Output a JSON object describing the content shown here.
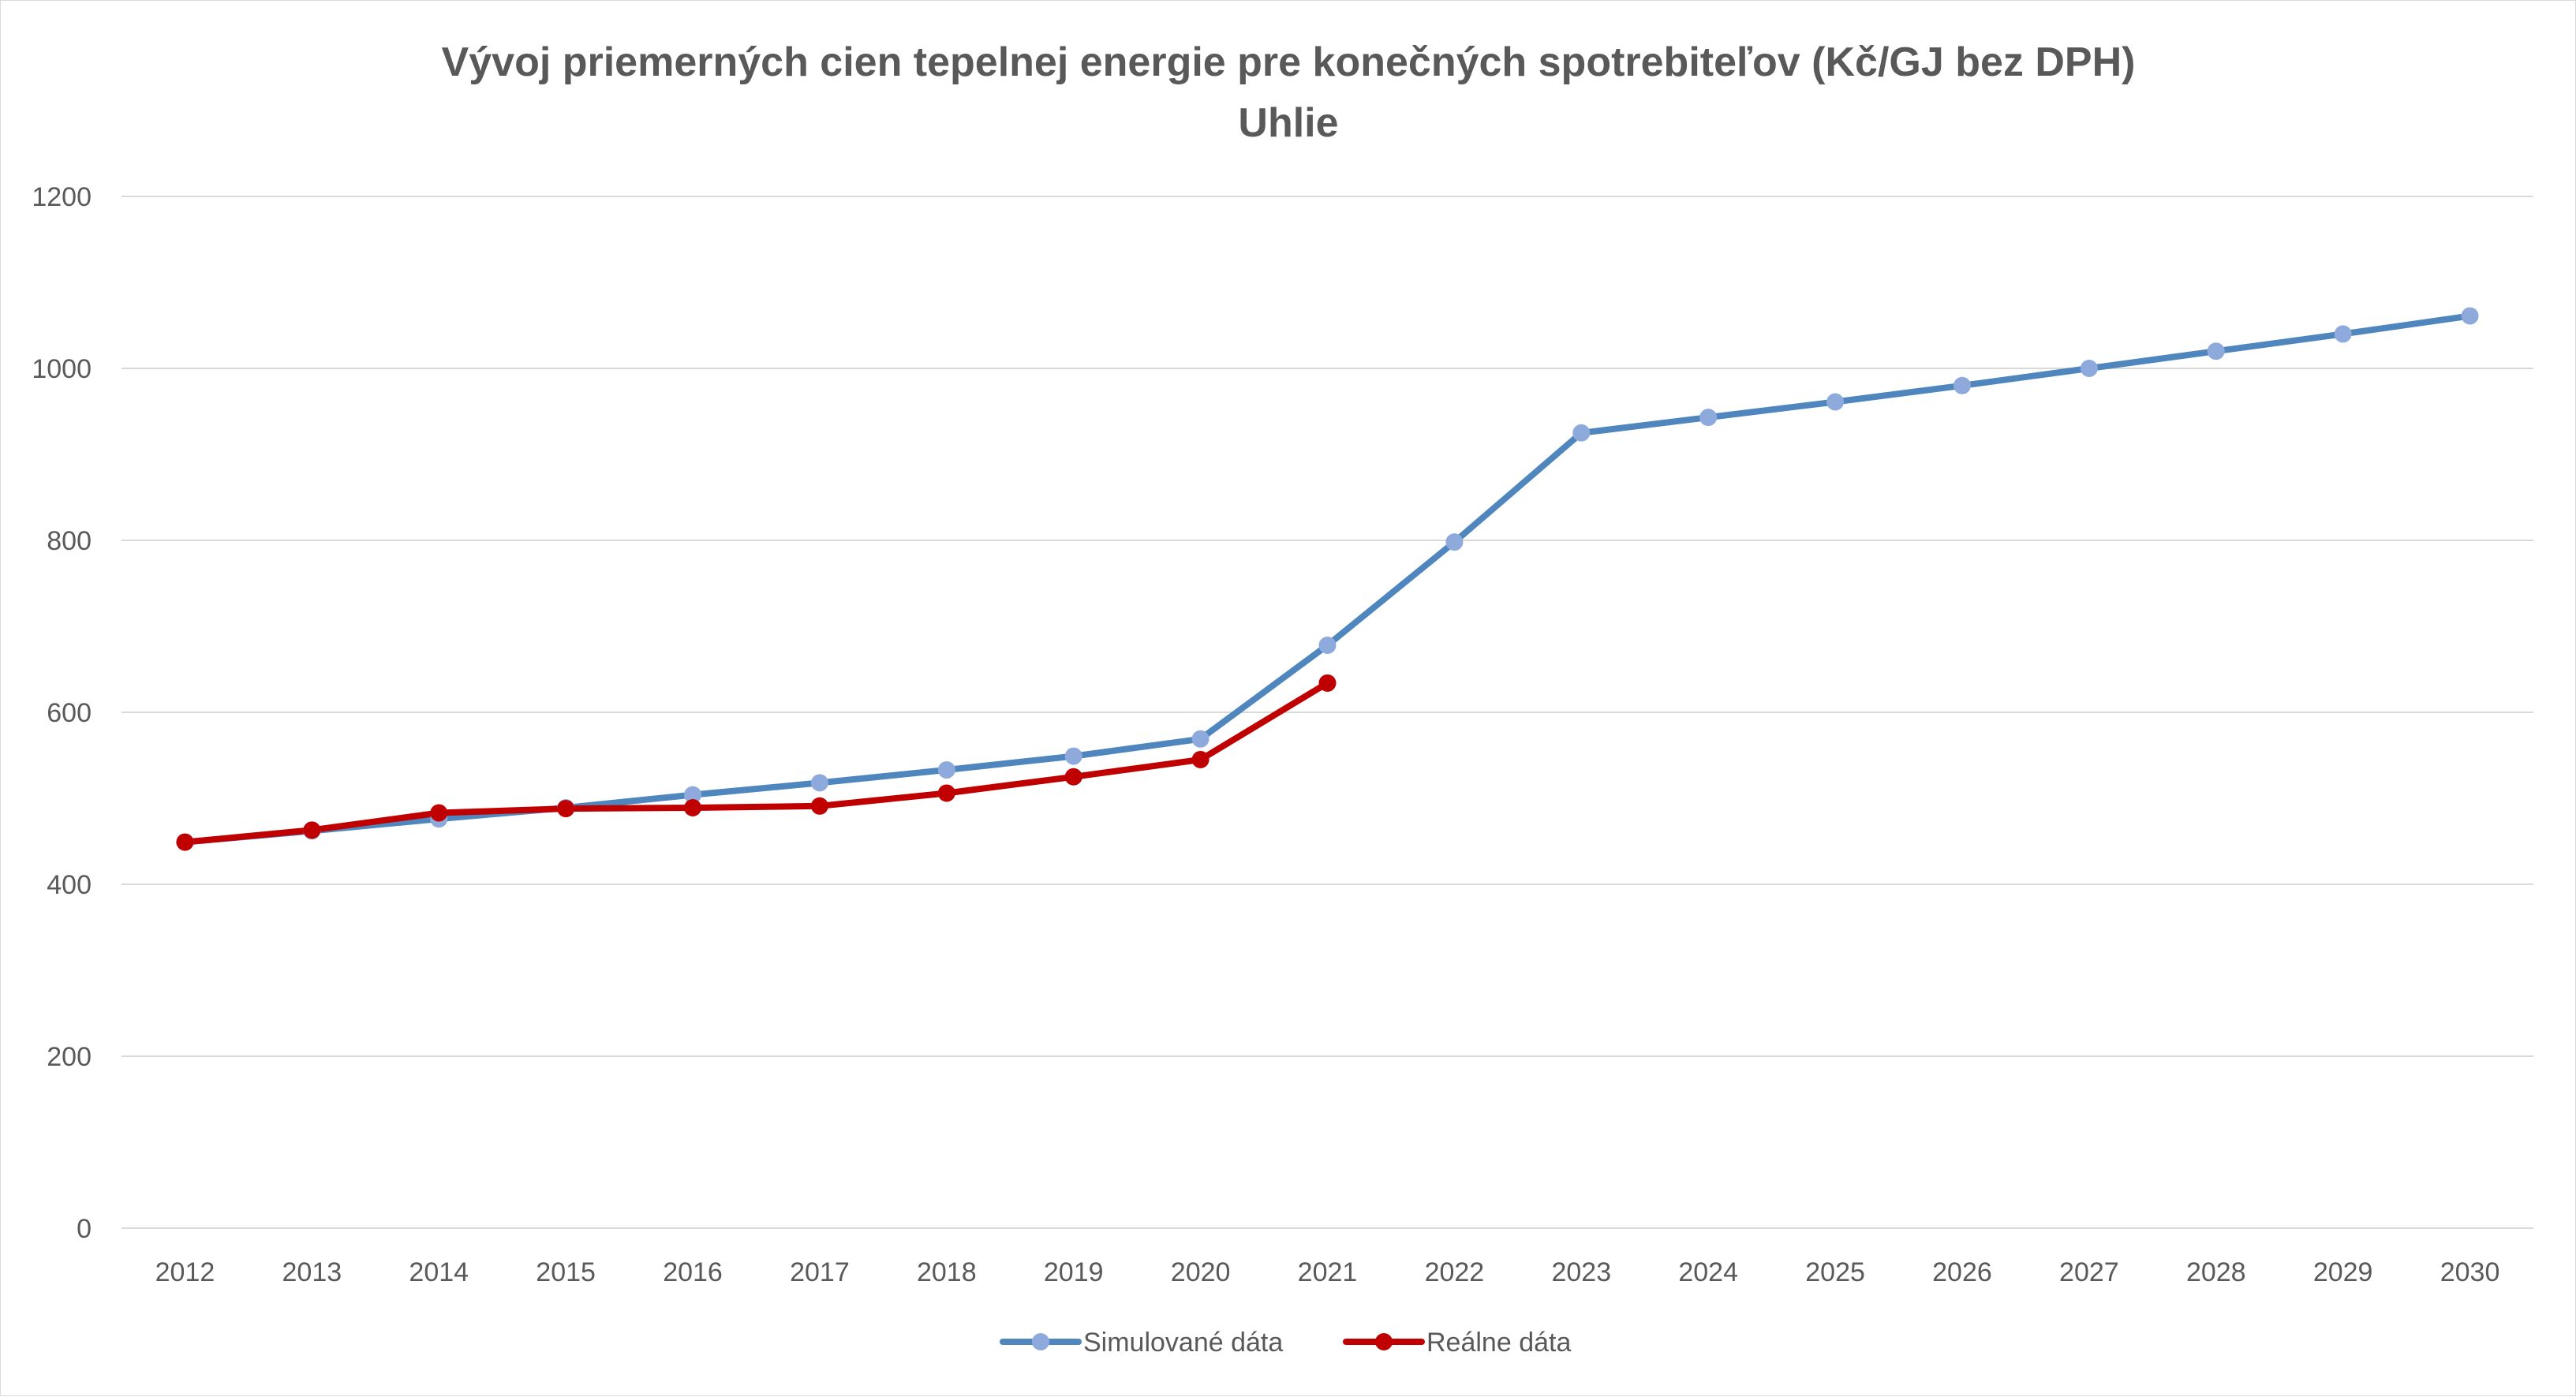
{
  "chart_data": {
    "type": "line",
    "title": "Vývoj priemerných cien tepelnej energie pre konečných spotrebiteľov (Kč/GJ bez DPH)",
    "subtitle": "Uhlie",
    "xlabel": "",
    "ylabel": "",
    "categories": [
      "2012",
      "2013",
      "2014",
      "2015",
      "2016",
      "2017",
      "2018",
      "2019",
      "2020",
      "2021",
      "2022",
      "2023",
      "2024",
      "2025",
      "2026",
      "2027",
      "2028",
      "2029",
      "2030"
    ],
    "ylim": [
      0,
      1200
    ],
    "yticks": [
      0,
      200,
      400,
      600,
      800,
      1000,
      1200
    ],
    "grid": true,
    "legend_position": "bottom",
    "series": [
      {
        "name": "Simulované dáta",
        "color": "#4f86be",
        "marker_color": "#8eaadc",
        "values": [
          449,
          462,
          476,
          489,
          504,
          518,
          533,
          549,
          569,
          678,
          798,
          925,
          943,
          961,
          980,
          1000,
          1020,
          1040,
          1061
        ]
      },
      {
        "name": "Reálne dáta",
        "color": "#c00000",
        "marker_color": "#c00000",
        "values": [
          449,
          463,
          483,
          488,
          489,
          491,
          506,
          525,
          545,
          634,
          null,
          null,
          null,
          null,
          null,
          null,
          null,
          null,
          null
        ]
      }
    ]
  }
}
